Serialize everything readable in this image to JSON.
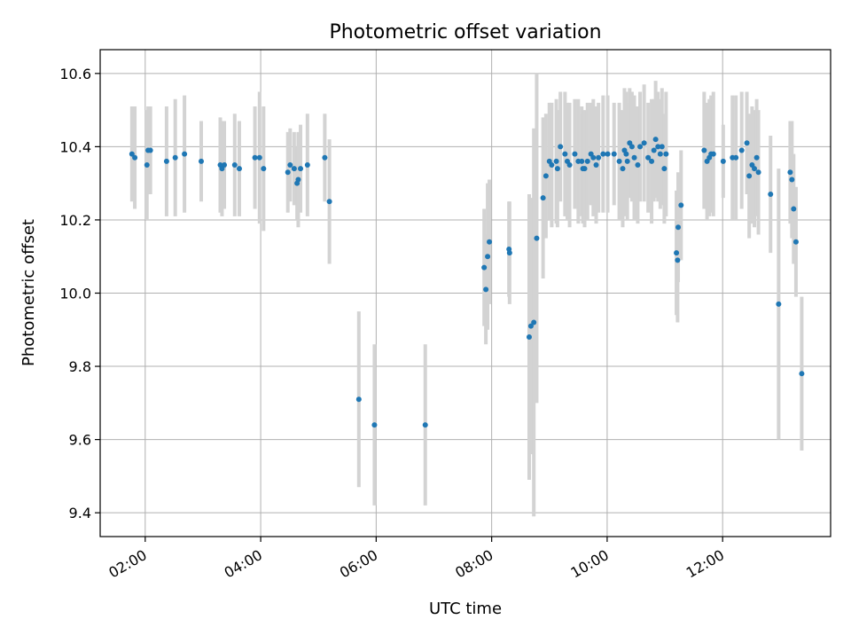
{
  "chart_data": {
    "type": "scatter",
    "title": "Photometric offset variation",
    "xlabel": "UTC time",
    "ylabel": "Photometric offset",
    "x_unit": "hours UTC",
    "xlim": [
      1.22,
      13.87
    ],
    "ylim": [
      9.335,
      10.665
    ],
    "x_ticks": [
      {
        "value": 2,
        "label": "02:00"
      },
      {
        "value": 4,
        "label": "04:00"
      },
      {
        "value": 6,
        "label": "06:00"
      },
      {
        "value": 8,
        "label": "08:00"
      },
      {
        "value": 10,
        "label": "10:00"
      },
      {
        "value": 12,
        "label": "12:00"
      }
    ],
    "y_ticks": [
      {
        "value": 9.4,
        "label": "9.4"
      },
      {
        "value": 9.6,
        "label": "9.6"
      },
      {
        "value": 9.8,
        "label": "9.8"
      },
      {
        "value": 10.0,
        "label": "10.0"
      },
      {
        "value": 10.2,
        "label": "10.2"
      },
      {
        "value": 10.4,
        "label": "10.4"
      },
      {
        "value": 10.6,
        "label": "10.6"
      }
    ],
    "grid": true,
    "marker_color": "#1f77b4",
    "errorbar_color": "#d3d3d3",
    "points": [
      [
        1.77,
        10.38,
        0.13
      ],
      [
        1.82,
        10.37,
        0.14
      ],
      [
        2.03,
        10.35,
        0.15
      ],
      [
        2.05,
        10.39,
        0.12
      ],
      [
        2.09,
        10.39,
        0.12
      ],
      [
        2.37,
        10.36,
        0.15
      ],
      [
        2.52,
        10.37,
        0.16
      ],
      [
        2.68,
        10.38,
        0.16
      ],
      [
        2.97,
        10.36,
        0.11
      ],
      [
        3.3,
        10.35,
        0.13
      ],
      [
        3.33,
        10.34,
        0.13
      ],
      [
        3.37,
        10.35,
        0.12
      ],
      [
        3.55,
        10.35,
        0.14
      ],
      [
        3.63,
        10.34,
        0.13
      ],
      [
        3.9,
        10.37,
        0.14
      ],
      [
        3.98,
        10.37,
        0.18
      ],
      [
        4.05,
        10.34,
        0.17
      ],
      [
        4.47,
        10.33,
        0.11
      ],
      [
        4.51,
        10.35,
        0.1
      ],
      [
        4.58,
        10.34,
        0.1
      ],
      [
        4.63,
        10.3,
        0.1
      ],
      [
        4.65,
        10.31,
        0.13
      ],
      [
        4.69,
        10.34,
        0.12
      ],
      [
        4.81,
        10.35,
        0.14
      ],
      [
        5.11,
        10.37,
        0.12
      ],
      [
        5.19,
        10.25,
        0.17
      ],
      [
        5.7,
        9.71,
        0.24
      ],
      [
        5.97,
        9.64,
        0.22
      ],
      [
        6.85,
        9.64,
        0.22
      ],
      [
        7.87,
        10.07,
        0.16
      ],
      [
        7.9,
        10.01,
        0.15
      ],
      [
        7.93,
        10.1,
        0.2
      ],
      [
        7.96,
        10.14,
        0.17
      ],
      [
        8.3,
        10.12,
        0.13
      ],
      [
        8.31,
        10.11,
        0.14
      ],
      [
        8.65,
        9.88,
        0.39
      ],
      [
        8.68,
        9.91,
        0.35
      ],
      [
        8.73,
        9.92,
        0.53
      ],
      [
        8.78,
        10.15,
        0.45
      ],
      [
        8.89,
        10.26,
        0.22
      ],
      [
        8.94,
        10.32,
        0.17
      ],
      [
        9.0,
        10.36,
        0.16
      ],
      [
        9.04,
        10.35,
        0.17
      ],
      [
        9.12,
        10.36,
        0.17
      ],
      [
        9.14,
        10.34,
        0.16
      ],
      [
        9.19,
        10.4,
        0.15
      ],
      [
        9.27,
        10.38,
        0.17
      ],
      [
        9.31,
        10.36,
        0.16
      ],
      [
        9.35,
        10.35,
        0.17
      ],
      [
        9.44,
        10.38,
        0.15
      ],
      [
        9.5,
        10.36,
        0.17
      ],
      [
        9.56,
        10.36,
        0.15
      ],
      [
        9.58,
        10.34,
        0.15
      ],
      [
        9.61,
        10.34,
        0.16
      ],
      [
        9.66,
        10.36,
        0.16
      ],
      [
        9.72,
        10.38,
        0.14
      ],
      [
        9.76,
        10.37,
        0.16
      ],
      [
        9.81,
        10.35,
        0.16
      ],
      [
        9.85,
        10.37,
        0.15
      ],
      [
        9.93,
        10.38,
        0.16
      ],
      [
        10.01,
        10.38,
        0.16
      ],
      [
        10.12,
        10.38,
        0.14
      ],
      [
        10.21,
        10.36,
        0.16
      ],
      [
        10.27,
        10.34,
        0.16
      ],
      [
        10.3,
        10.39,
        0.17
      ],
      [
        10.33,
        10.38,
        0.17
      ],
      [
        10.35,
        10.36,
        0.16
      ],
      [
        10.39,
        10.41,
        0.15
      ],
      [
        10.43,
        10.4,
        0.15
      ],
      [
        10.47,
        10.37,
        0.17
      ],
      [
        10.53,
        10.35,
        0.16
      ],
      [
        10.57,
        10.4,
        0.15
      ],
      [
        10.64,
        10.41,
        0.16
      ],
      [
        10.71,
        10.37,
        0.15
      ],
      [
        10.77,
        10.36,
        0.17
      ],
      [
        10.81,
        10.39,
        0.14
      ],
      [
        10.84,
        10.42,
        0.16
      ],
      [
        10.88,
        10.4,
        0.15
      ],
      [
        10.92,
        10.38,
        0.15
      ],
      [
        10.95,
        10.4,
        0.16
      ],
      [
        10.99,
        10.34,
        0.15
      ],
      [
        11.02,
        10.38,
        0.17
      ],
      [
        11.2,
        10.11,
        0.17
      ],
      [
        11.22,
        10.09,
        0.17
      ],
      [
        11.23,
        10.18,
        0.15
      ],
      [
        11.28,
        10.24,
        0.15
      ],
      [
        11.68,
        10.39,
        0.16
      ],
      [
        11.73,
        10.36,
        0.16
      ],
      [
        11.77,
        10.37,
        0.16
      ],
      [
        11.8,
        10.38,
        0.16
      ],
      [
        11.84,
        10.38,
        0.17
      ],
      [
        12.01,
        10.36,
        0.1
      ],
      [
        12.17,
        10.37,
        0.17
      ],
      [
        12.23,
        10.37,
        0.17
      ],
      [
        12.33,
        10.39,
        0.16
      ],
      [
        12.42,
        10.41,
        0.14
      ],
      [
        12.46,
        10.32,
        0.17
      ],
      [
        12.51,
        10.35,
        0.16
      ],
      [
        12.55,
        10.34,
        0.16
      ],
      [
        12.59,
        10.37,
        0.16
      ],
      [
        12.62,
        10.33,
        0.17
      ],
      [
        12.83,
        10.27,
        0.16
      ],
      [
        12.97,
        9.97,
        0.37
      ],
      [
        13.17,
        10.33,
        0.14
      ],
      [
        13.2,
        10.31,
        0.16
      ],
      [
        13.23,
        10.23,
        0.15
      ],
      [
        13.27,
        10.14,
        0.15
      ],
      [
        13.37,
        9.78,
        0.21
      ]
    ]
  }
}
